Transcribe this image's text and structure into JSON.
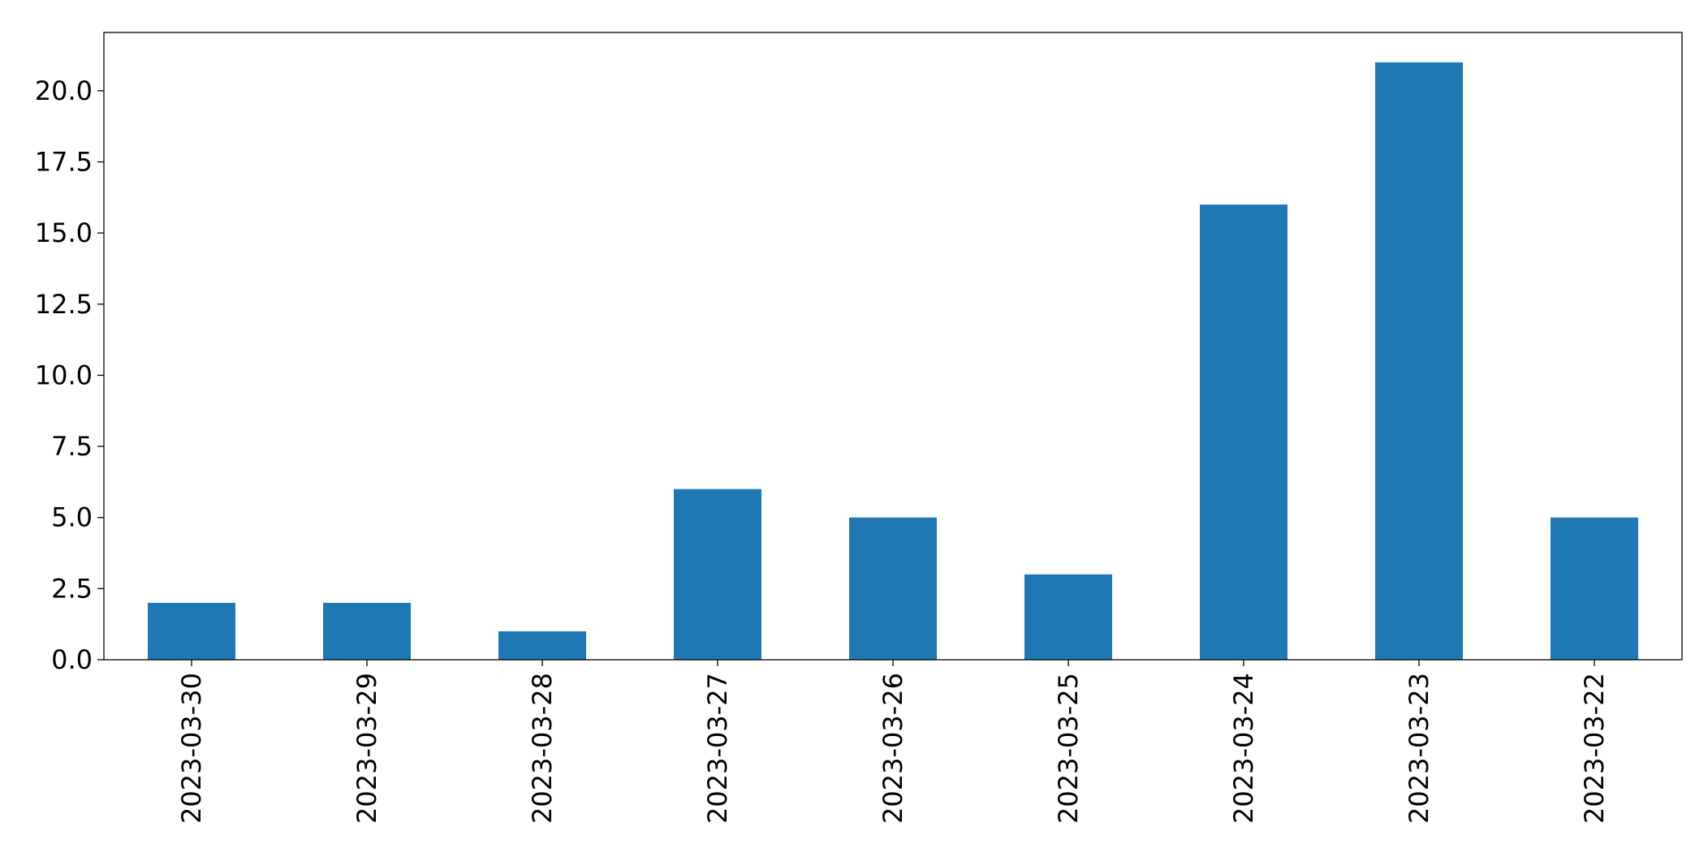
{
  "chart_data": {
    "type": "bar",
    "title": "",
    "xlabel": "",
    "ylabel": "",
    "categories": [
      "2023-03-30",
      "2023-03-29",
      "2023-03-28",
      "2023-03-27",
      "2023-03-26",
      "2023-03-25",
      "2023-03-24",
      "2023-03-23",
      "2023-03-22"
    ],
    "values": [
      2,
      2,
      1,
      6,
      5,
      3,
      16,
      21,
      5
    ],
    "ylim": [
      0,
      22.05
    ],
    "yticks": [
      0,
      2.5,
      5,
      7.5,
      10,
      12.5,
      15,
      17.5,
      20
    ],
    "ytick_labels": [
      "0.0",
      "2.5",
      "5.0",
      "7.5",
      "10.0",
      "12.5",
      "15.0",
      "17.5",
      "20.0"
    ],
    "bar_color": "#1f77b4",
    "grid": false,
    "legend": "none"
  }
}
